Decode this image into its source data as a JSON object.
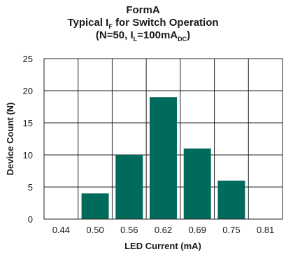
{
  "chart_data": {
    "type": "bar",
    "title": {
      "line1": "FormA",
      "line2_main": "Typical I",
      "line2_sub": "F",
      "line2_rest": " for Switch Operation",
      "line3_a": "(N=50, I",
      "line3_sub1": "L",
      "line3_b": "=100mA",
      "line3_sub2": "DC",
      "line3_c": ")"
    },
    "xlabel": "LED Current (mA)",
    "ylabel": "Device Count (N)",
    "categories": [
      "0.44",
      "0.50",
      "0.56",
      "0.62",
      "0.69",
      "0.75",
      "0.81"
    ],
    "values": [
      0,
      4,
      10,
      19,
      11,
      6,
      0
    ],
    "yticks": [
      "0",
      "5",
      "10",
      "15",
      "20",
      "25"
    ],
    "ylim": [
      0,
      25
    ],
    "grid": true,
    "bar_color": "#006a5b"
  }
}
